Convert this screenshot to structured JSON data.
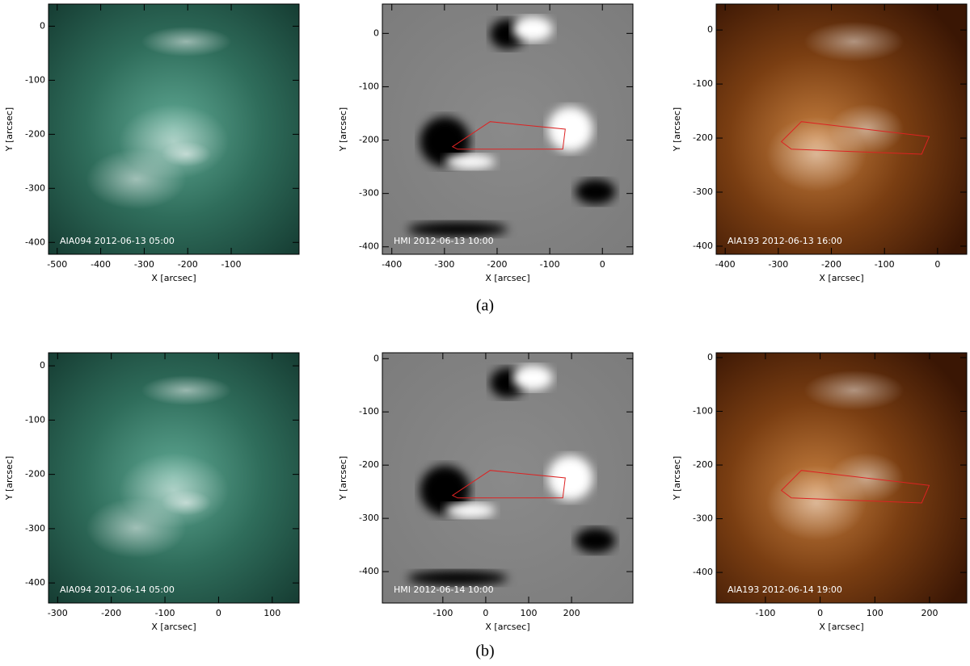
{
  "rows": [
    {
      "caption": "(a)",
      "panels": [
        {
          "style": "aia094",
          "label": "AIA094 2012-06-13 05:00",
          "x_label": "X [arcsec]",
          "y_label": "Y [arcsec]",
          "xlim": [
            -520,
            56
          ],
          "ylim": [
            41,
            -422
          ],
          "xticks": [
            -500,
            -400,
            -300,
            -200,
            -100
          ],
          "yticks": [
            0,
            -100,
            -200,
            -300,
            -400
          ]
        },
        {
          "style": "hmi",
          "label": "HMI 2012-06-13 10:00",
          "x_label": "X [arcsec]",
          "y_label": "Y [arcsec]",
          "xlim": [
            -418,
            58
          ],
          "ylim": [
            55,
            -414
          ],
          "xticks": [
            -400,
            -300,
            -200,
            -100,
            0
          ],
          "yticks": [
            0,
            -100,
            -200,
            -300,
            -400
          ]
        },
        {
          "style": "aia193",
          "label": "AIA193 2012-06-13 16:00",
          "x_label": "X [arcsec]",
          "y_label": "Y [arcsec]",
          "xlim": [
            -417,
            55
          ],
          "ylim": [
            48,
            -415
          ],
          "xticks": [
            -400,
            -300,
            -200,
            -100,
            0
          ],
          "yticks": [
            0,
            -100,
            -200,
            -300,
            -400
          ]
        }
      ]
    },
    {
      "caption": "(b)",
      "panels": [
        {
          "style": "aia094",
          "label": "AIA094 2012-06-14 05:00",
          "x_label": "X [arcsec]",
          "y_label": "Y [arcsec]",
          "xlim": [
            -317,
            150
          ],
          "ylim": [
            24,
            -437
          ],
          "xticks": [
            -300,
            -200,
            -100,
            0,
            100
          ],
          "yticks": [
            0,
            -100,
            -200,
            -300,
            -400
          ]
        },
        {
          "style": "hmi",
          "label": "HMI 2012-06-14 10:00",
          "x_label": "X [arcsec]",
          "y_label": "Y [arcsec]",
          "xlim": [
            -241,
            343
          ],
          "ylim": [
            11,
            -459
          ],
          "xticks": [
            -100,
            0,
            100,
            200
          ],
          "yticks": [
            0,
            -100,
            -200,
            -300,
            -400
          ]
        },
        {
          "style": "aia193",
          "label": "AIA193 2012-06-14 19:00",
          "x_label": "X [arcsec]",
          "y_label": "Y [arcsec]",
          "xlim": [
            -190,
            268
          ],
          "ylim": [
            9,
            -457
          ],
          "xticks": [
            -100,
            0,
            100,
            200
          ],
          "yticks": [
            0,
            -100,
            -200,
            -300,
            -400
          ]
        }
      ]
    }
  ]
}
